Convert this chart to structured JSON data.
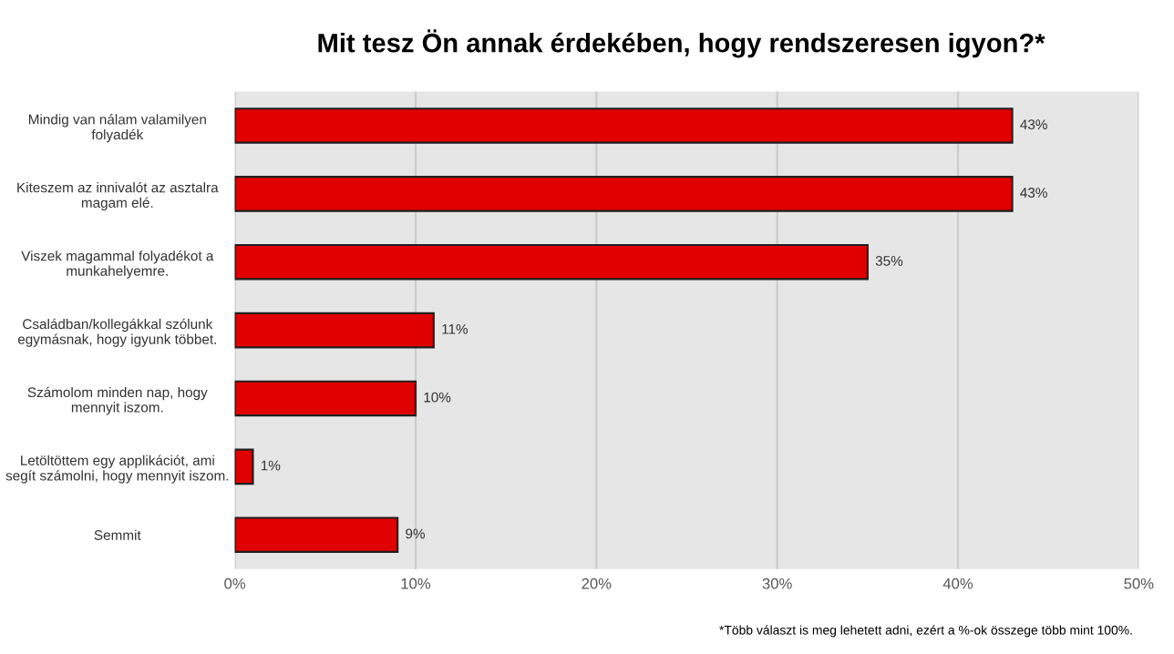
{
  "chart_data": {
    "type": "bar",
    "orientation": "horizontal",
    "title": "Mit tesz Ön annak érdekében, hogy rendszeresen igyon?*",
    "categories": [
      "Mindig van nálam valamilyen\nfolyadék",
      "Kiteszem az innivalót az asztalra\nmagam elé.",
      "Viszek magammal folyadékot a\nmunkahelyemre.",
      "Családban/kollegákkal szólunk\negymásnak, hogy igyunk többet.",
      "Számolom minden nap, hogy\nmennyit iszom.",
      "Letöltöttem egy applikációt, ami\nsegít számolni, hogy mennyit iszom.",
      "Semmit"
    ],
    "values": [
      43,
      43,
      35,
      11,
      10,
      1,
      9
    ],
    "value_labels": [
      "43%",
      "43%",
      "35%",
      "11%",
      "10%",
      "1%",
      "9%"
    ],
    "color": "#e00000",
    "xlim": [
      0,
      50
    ],
    "xticks": [
      {
        "value": 0,
        "label": "0%"
      },
      {
        "value": 10,
        "label": "10%"
      },
      {
        "value": 20,
        "label": "20%"
      },
      {
        "value": 30,
        "label": "30%"
      },
      {
        "value": 40,
        "label": "40%"
      },
      {
        "value": 50,
        "label": "50%"
      }
    ],
    "grid": "x",
    "legend": false,
    "annotations": [
      "*Több választ is meg lehetett adni, ezért a %-ok összege több mint 100%."
    ]
  }
}
